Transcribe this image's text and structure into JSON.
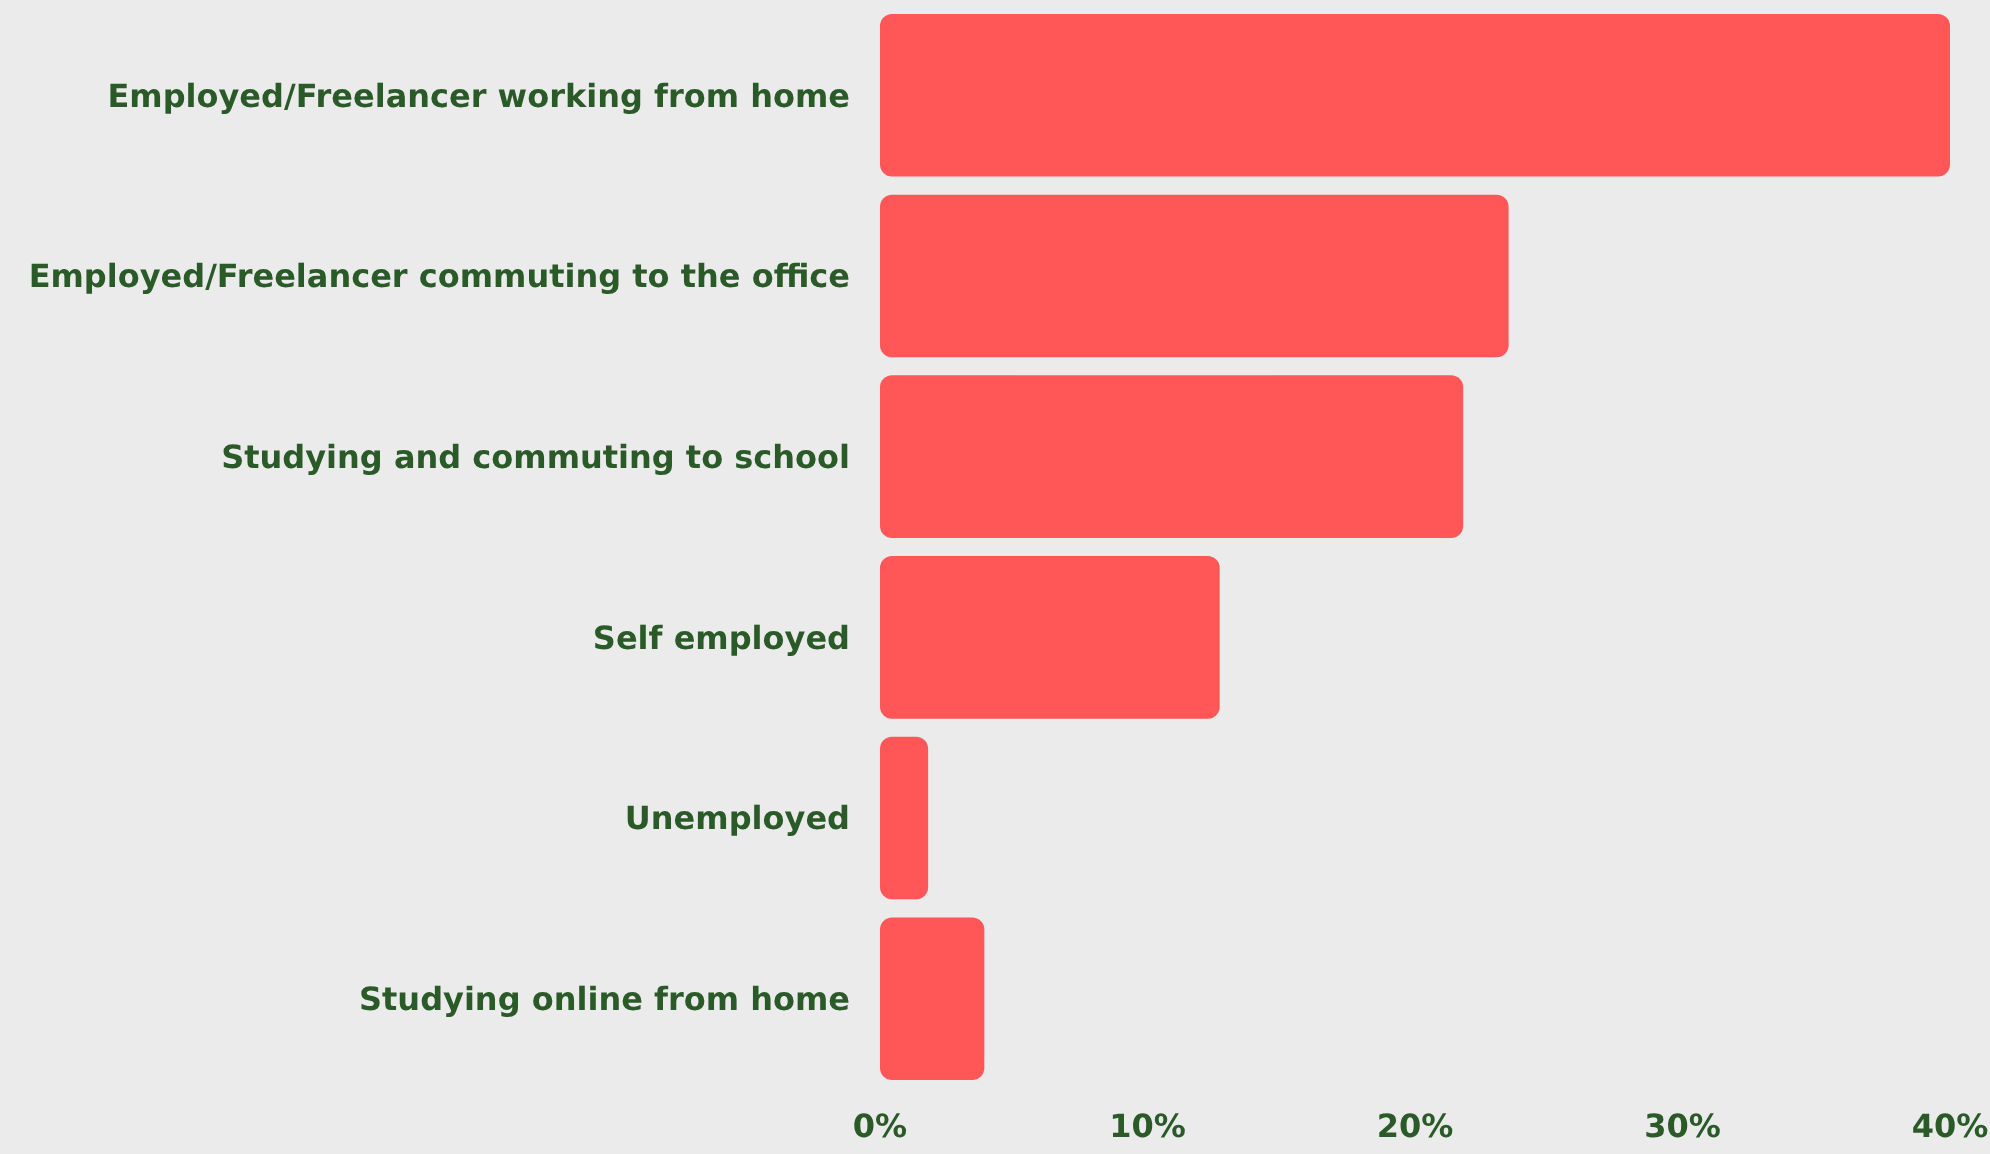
{
  "chart_data": {
    "type": "bar",
    "orientation": "horizontal",
    "categories": [
      "Employed/Freelancer working from home",
      "Employed/Freelancer commuting to the office",
      "Studying and commuting to school",
      "Self employed",
      "Unemployed",
      "Studying online from home"
    ],
    "values": [
      40,
      23.5,
      21.8,
      12.7,
      1.8,
      3.9
    ],
    "color": "#ff5757",
    "xlim": [
      0,
      40
    ],
    "xticks": [
      {
        "value": 0,
        "label": "0%"
      },
      {
        "value": 10,
        "label": "10%"
      },
      {
        "value": 20,
        "label": "20%"
      },
      {
        "value": 30,
        "label": "30%"
      },
      {
        "value": 40,
        "label": "40%"
      }
    ],
    "grid": false
  }
}
